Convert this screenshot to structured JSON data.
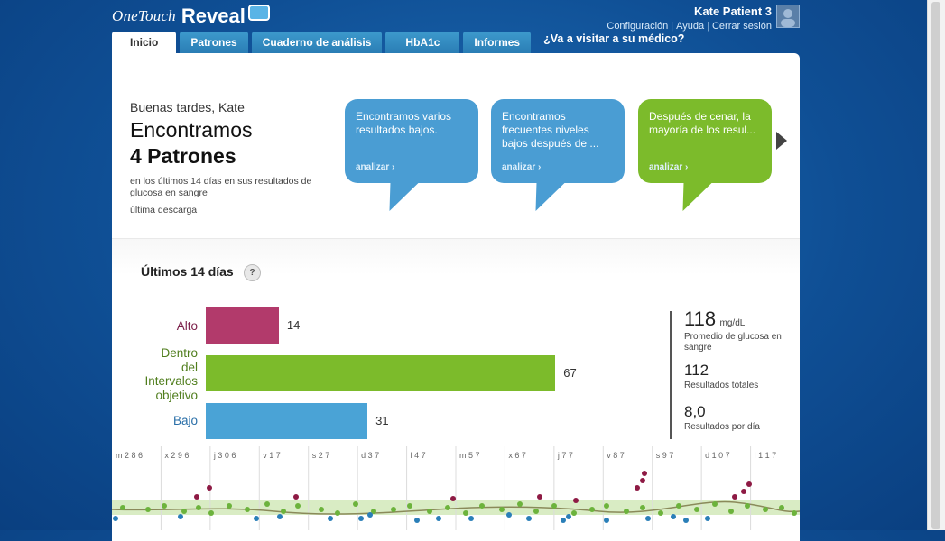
{
  "app": {
    "logo_one": "OneTouch",
    "logo_reveal": "Reveal"
  },
  "user": {
    "name": "Kate Patient 3",
    "links": [
      "Configuración",
      "Ayuda",
      "Cerrar sesión"
    ]
  },
  "tabs": [
    {
      "label": "Inicio",
      "active": true
    },
    {
      "label": "Patrones",
      "active": false
    },
    {
      "label": "Cuaderno de análisis",
      "active": false
    },
    {
      "label": "HbA1c",
      "active": false
    },
    {
      "label": "Informes",
      "active": false
    }
  ],
  "doctor_link": "¿Va a visitar a su médico?",
  "greeting": {
    "hello": "Buenas tardes, Kate",
    "found": "Encontramos",
    "count": "4 Patrones",
    "subtitle": "en los últimos 14 días en sus resultados de glucosa en sangre",
    "last_download": "última descarga"
  },
  "pattern_cards": [
    {
      "text": "Encontramos varios resultados bajos.",
      "cta": "analizar ›",
      "color": "#4a9dd3"
    },
    {
      "text": "Encontramos frecuentes niveles bajos después de ...",
      "cta": "analizar ›",
      "color": "#4a9dd3"
    },
    {
      "text": "Después de cenar, la mayoría de los resul...",
      "cta": "analizar ›",
      "color": "#7cbb2b"
    }
  ],
  "range": {
    "title": "Últimos 14 días",
    "help": "?"
  },
  "chart_data": {
    "type": "bar",
    "categories": [
      "Alto",
      "Dentro del Intervalo objetivo",
      "Bajo"
    ],
    "values": [
      14,
      67,
      31
    ],
    "colors": [
      "#b23a6b",
      "#7cbb2b",
      "#4aa3d6"
    ]
  },
  "bar_labels": [
    {
      "lines": [
        "Alto"
      ],
      "color": "#7a1d48"
    },
    {
      "lines": [
        "Dentro",
        "del",
        "Intervalos",
        "objetivo"
      ],
      "color": "#4f7d1c"
    },
    {
      "lines": [
        "Bajo"
      ],
      "color": "#2a6fa8"
    }
  ],
  "stats": {
    "average": "118",
    "average_unit": "mg/dL",
    "average_label": "Promedio de glucosa en sangre",
    "total": "112",
    "total_label": "Resultados totales",
    "per_day": "8,0",
    "per_day_label": "Resultados por día"
  },
  "timeline": {
    "days": [
      "m 2 8 6",
      "x 2 9 6",
      "j 3 0 6",
      "v 1 7",
      "s 2 7",
      "d 3 7",
      "l 4 7",
      "m 5 7",
      "x 6 7",
      "j 7 7",
      "v 8 7",
      "s 9 7",
      "d 1 0 7",
      "l 1 1 7"
    ]
  }
}
